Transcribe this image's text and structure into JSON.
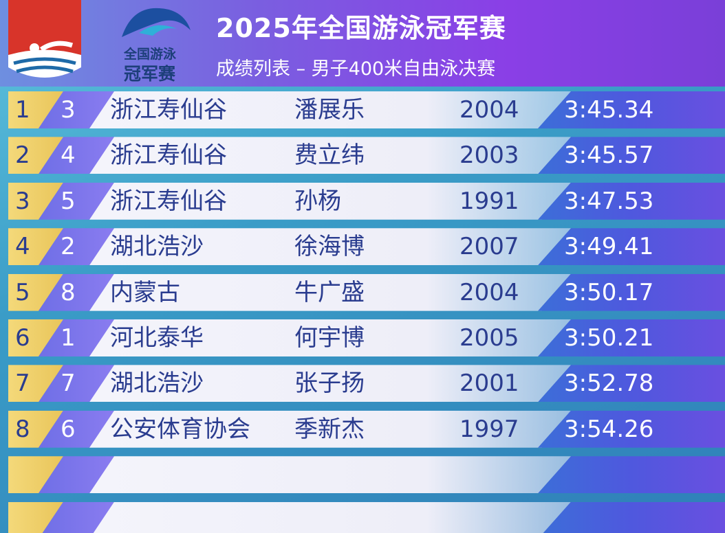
{
  "header": {
    "title": "2025年全国游泳冠军赛",
    "subtitle": "成绩列表 – 男子400米自由泳决赛"
  },
  "logo": {
    "line1": "全国游泳",
    "line2": "冠军赛"
  },
  "table": {
    "rows": [
      [
        "1",
        "3",
        "浙江寿仙谷",
        "潘展乐",
        "2004",
        "3:45.34"
      ],
      [
        "2",
        "4",
        "浙江寿仙谷",
        "费立纬",
        "2003",
        "3:45.57"
      ],
      [
        "3",
        "5",
        "浙江寿仙谷",
        "孙杨",
        "1991",
        "3:47.53"
      ],
      [
        "4",
        "2",
        "湖北浩沙",
        "徐海博",
        "2007",
        "3:49.41"
      ],
      [
        "5",
        "8",
        "内蒙古",
        "牛广盛",
        "2004",
        "3:50.17"
      ],
      [
        "6",
        "1",
        "河北泰华",
        "何宇博",
        "2005",
        "3:50.21"
      ],
      [
        "7",
        "7",
        "湖北浩沙",
        "张子扬",
        "2001",
        "3:52.78"
      ],
      [
        "8",
        "6",
        "公安体育协会",
        "季新杰",
        "1997",
        "3:54.26"
      ]
    ]
  }
}
